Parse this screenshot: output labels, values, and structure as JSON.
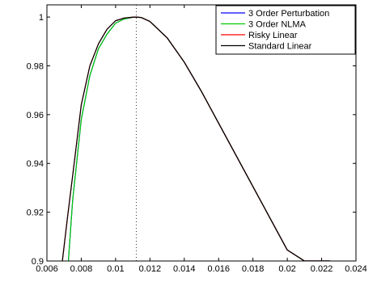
{
  "chart_data": {
    "type": "line",
    "title": "",
    "xlabel": "",
    "ylabel": "",
    "xlim": [
      0.006,
      0.024
    ],
    "ylim": [
      0.9,
      1.005
    ],
    "xticks": [
      0.006,
      0.008,
      0.01,
      0.012,
      0.014,
      0.016,
      0.018,
      0.02,
      0.022,
      0.024
    ],
    "xtick_labels": [
      "0.006",
      "0.008",
      "0.01",
      "0.012",
      "0.014",
      "0.016",
      "0.018",
      "0.02",
      "0.022",
      "0.024"
    ],
    "yticks": [
      0.9,
      0.92,
      0.94,
      0.96,
      0.98,
      1.0
    ],
    "ytick_labels": [
      "0.9",
      "0.92",
      "0.94",
      "0.96",
      "0.98",
      "1"
    ],
    "grid": false,
    "legend_position": "top-right",
    "vertical_reference_x": 0.0112,
    "series": [
      {
        "name": "3 Order Perturbation",
        "color": "#0000ff",
        "x": [
          0.00725,
          0.0075,
          0.008,
          0.0085,
          0.009,
          0.0095,
          0.01,
          0.0105,
          0.011,
          0.0112,
          0.0115,
          0.012,
          0.013,
          0.014,
          0.015,
          0.016,
          0.017,
          0.018,
          0.019,
          0.02,
          0.021,
          0.022,
          0.0225
        ],
        "y": [
          0.9,
          0.925,
          0.958,
          0.976,
          0.987,
          0.993,
          0.9975,
          0.9992,
          0.9999,
          1.0,
          0.9998,
          0.9982,
          0.9915,
          0.9815,
          0.9695,
          0.9565,
          0.9435,
          0.9305,
          0.9175,
          0.9045,
          0.9,
          0.9,
          0.9
        ]
      },
      {
        "name": "3 Order NLMA",
        "color": "#00cc00",
        "x": [
          0.00725,
          0.0075,
          0.008,
          0.0085,
          0.009,
          0.0095,
          0.01,
          0.0105,
          0.011,
          0.0112,
          0.0115,
          0.012,
          0.013,
          0.014,
          0.015,
          0.016,
          0.017,
          0.018,
          0.019,
          0.02,
          0.021,
          0.022,
          0.0225
        ],
        "y": [
          0.9,
          0.925,
          0.958,
          0.976,
          0.987,
          0.993,
          0.9975,
          0.9992,
          0.9999,
          1.0,
          0.9998,
          0.9982,
          0.9915,
          0.9815,
          0.9695,
          0.9565,
          0.9435,
          0.9305,
          0.9175,
          0.9045,
          0.9,
          0.9,
          0.9
        ]
      },
      {
        "name": "Risky Linear",
        "color": "#ff0000",
        "x": [
          0.0069,
          0.0072,
          0.0075,
          0.008,
          0.0085,
          0.009,
          0.0095,
          0.01,
          0.0105,
          0.011,
          0.0112,
          0.0115,
          0.012,
          0.013,
          0.014,
          0.015,
          0.016,
          0.017,
          0.018,
          0.019,
          0.02,
          0.021,
          0.022,
          0.0225
        ],
        "y": [
          0.9,
          0.918,
          0.935,
          0.964,
          0.98,
          0.989,
          0.995,
          0.9985,
          0.9996,
          0.99995,
          1.0,
          0.9998,
          0.9982,
          0.9915,
          0.9815,
          0.9695,
          0.9565,
          0.9435,
          0.9305,
          0.9175,
          0.9045,
          0.9,
          0.9,
          0.9
        ]
      },
      {
        "name": "Standard Linear",
        "color": "#000000",
        "x": [
          0.0069,
          0.0072,
          0.0075,
          0.008,
          0.0085,
          0.009,
          0.0095,
          0.01,
          0.0105,
          0.011,
          0.0112,
          0.0115,
          0.012,
          0.013,
          0.014,
          0.015,
          0.016,
          0.017,
          0.018,
          0.019,
          0.02,
          0.021,
          0.022,
          0.0225
        ],
        "y": [
          0.9,
          0.918,
          0.935,
          0.964,
          0.98,
          0.989,
          0.995,
          0.9985,
          0.9996,
          0.99995,
          1.0,
          0.9998,
          0.9982,
          0.9915,
          0.9815,
          0.9695,
          0.9565,
          0.9435,
          0.9305,
          0.9175,
          0.9045,
          0.9,
          0.9,
          0.9
        ]
      }
    ]
  }
}
